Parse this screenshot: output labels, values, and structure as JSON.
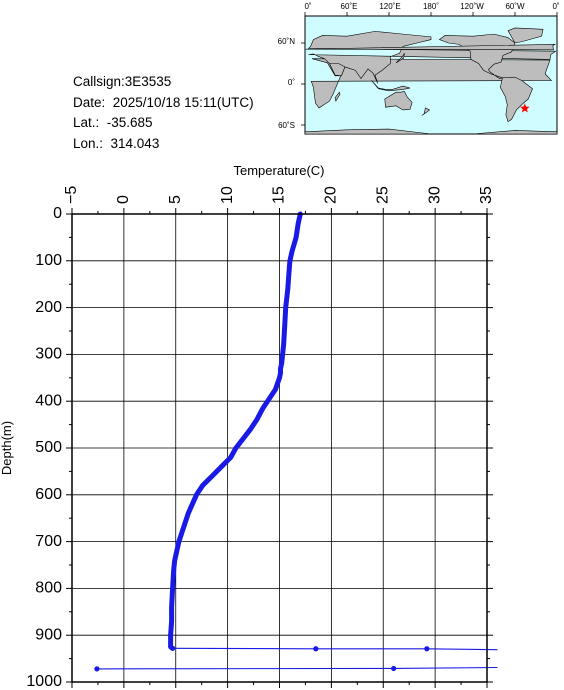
{
  "station": {
    "callsign": "Callsign:3E3535",
    "date": "Date:  2025/10/18 15:11(UTC)",
    "lat": "Lat.:  -35.685",
    "lon": "Lon.:  314.043"
  },
  "map": {
    "lon_labels": [
      "0˚",
      "60˚E",
      "120˚E",
      "180˚",
      "120˚W",
      "60˚W",
      "0˚"
    ],
    "lat_labels": [
      "60˚N",
      "0˚",
      "60˚S"
    ],
    "marker_lat": -35.685,
    "marker_lon": 314.043,
    "ocean_color": "#cffcff",
    "land_color": "#bdbdbd",
    "marker_color": "#ff0000"
  },
  "chart_data": {
    "type": "line",
    "xlabel": "Temperature(C)",
    "ylabel": "Depth(m)",
    "xlim": [
      -5,
      35
    ],
    "ylim": [
      1000,
      0
    ],
    "x_ticks": [
      "−5",
      "0",
      "5",
      "10",
      "15",
      "20",
      "25",
      "30",
      "35"
    ],
    "y_ticks": [
      "0",
      "100",
      "200",
      "300",
      "400",
      "500",
      "600",
      "700",
      "800",
      "900",
      "1000"
    ],
    "line_color": "#1a1ae6",
    "grid": true,
    "series": [
      {
        "temperature": [
          17.0,
          16.8,
          16.6,
          16.2,
          16.0,
          15.9,
          15.8,
          15.6,
          15.5,
          15.4,
          15.3,
          15.2,
          15.1,
          15.1,
          15.0,
          14.6,
          14.0,
          13.4,
          12.8,
          12.2,
          11.5,
          10.8,
          10.3,
          9.4,
          8.5,
          7.6,
          7.0,
          6.6,
          6.2,
          5.9,
          5.6,
          5.3,
          5.1,
          4.9,
          4.8,
          4.7,
          4.6,
          4.6,
          4.5,
          4.5,
          4.5,
          4.7
        ],
        "depth": [
          0,
          20,
          50,
          80,
          100,
          130,
          160,
          200,
          240,
          280,
          300,
          320,
          330,
          340,
          350,
          375,
          395,
          415,
          440,
          460,
          480,
          500,
          520,
          540,
          560,
          580,
          600,
          620,
          640,
          660,
          680,
          700,
          720,
          740,
          760,
          800,
          840,
          870,
          900,
          915,
          925,
          928
        ]
      }
    ],
    "spikes": [
      {
        "temperature": [
          4.7,
          18.5,
          29.2,
          36.0
        ],
        "depth": [
          928,
          929,
          929,
          931
        ]
      },
      {
        "temperature": [
          -2.6,
          26.0,
          36.0
        ],
        "depth": [
          972,
          971,
          969
        ]
      }
    ]
  }
}
